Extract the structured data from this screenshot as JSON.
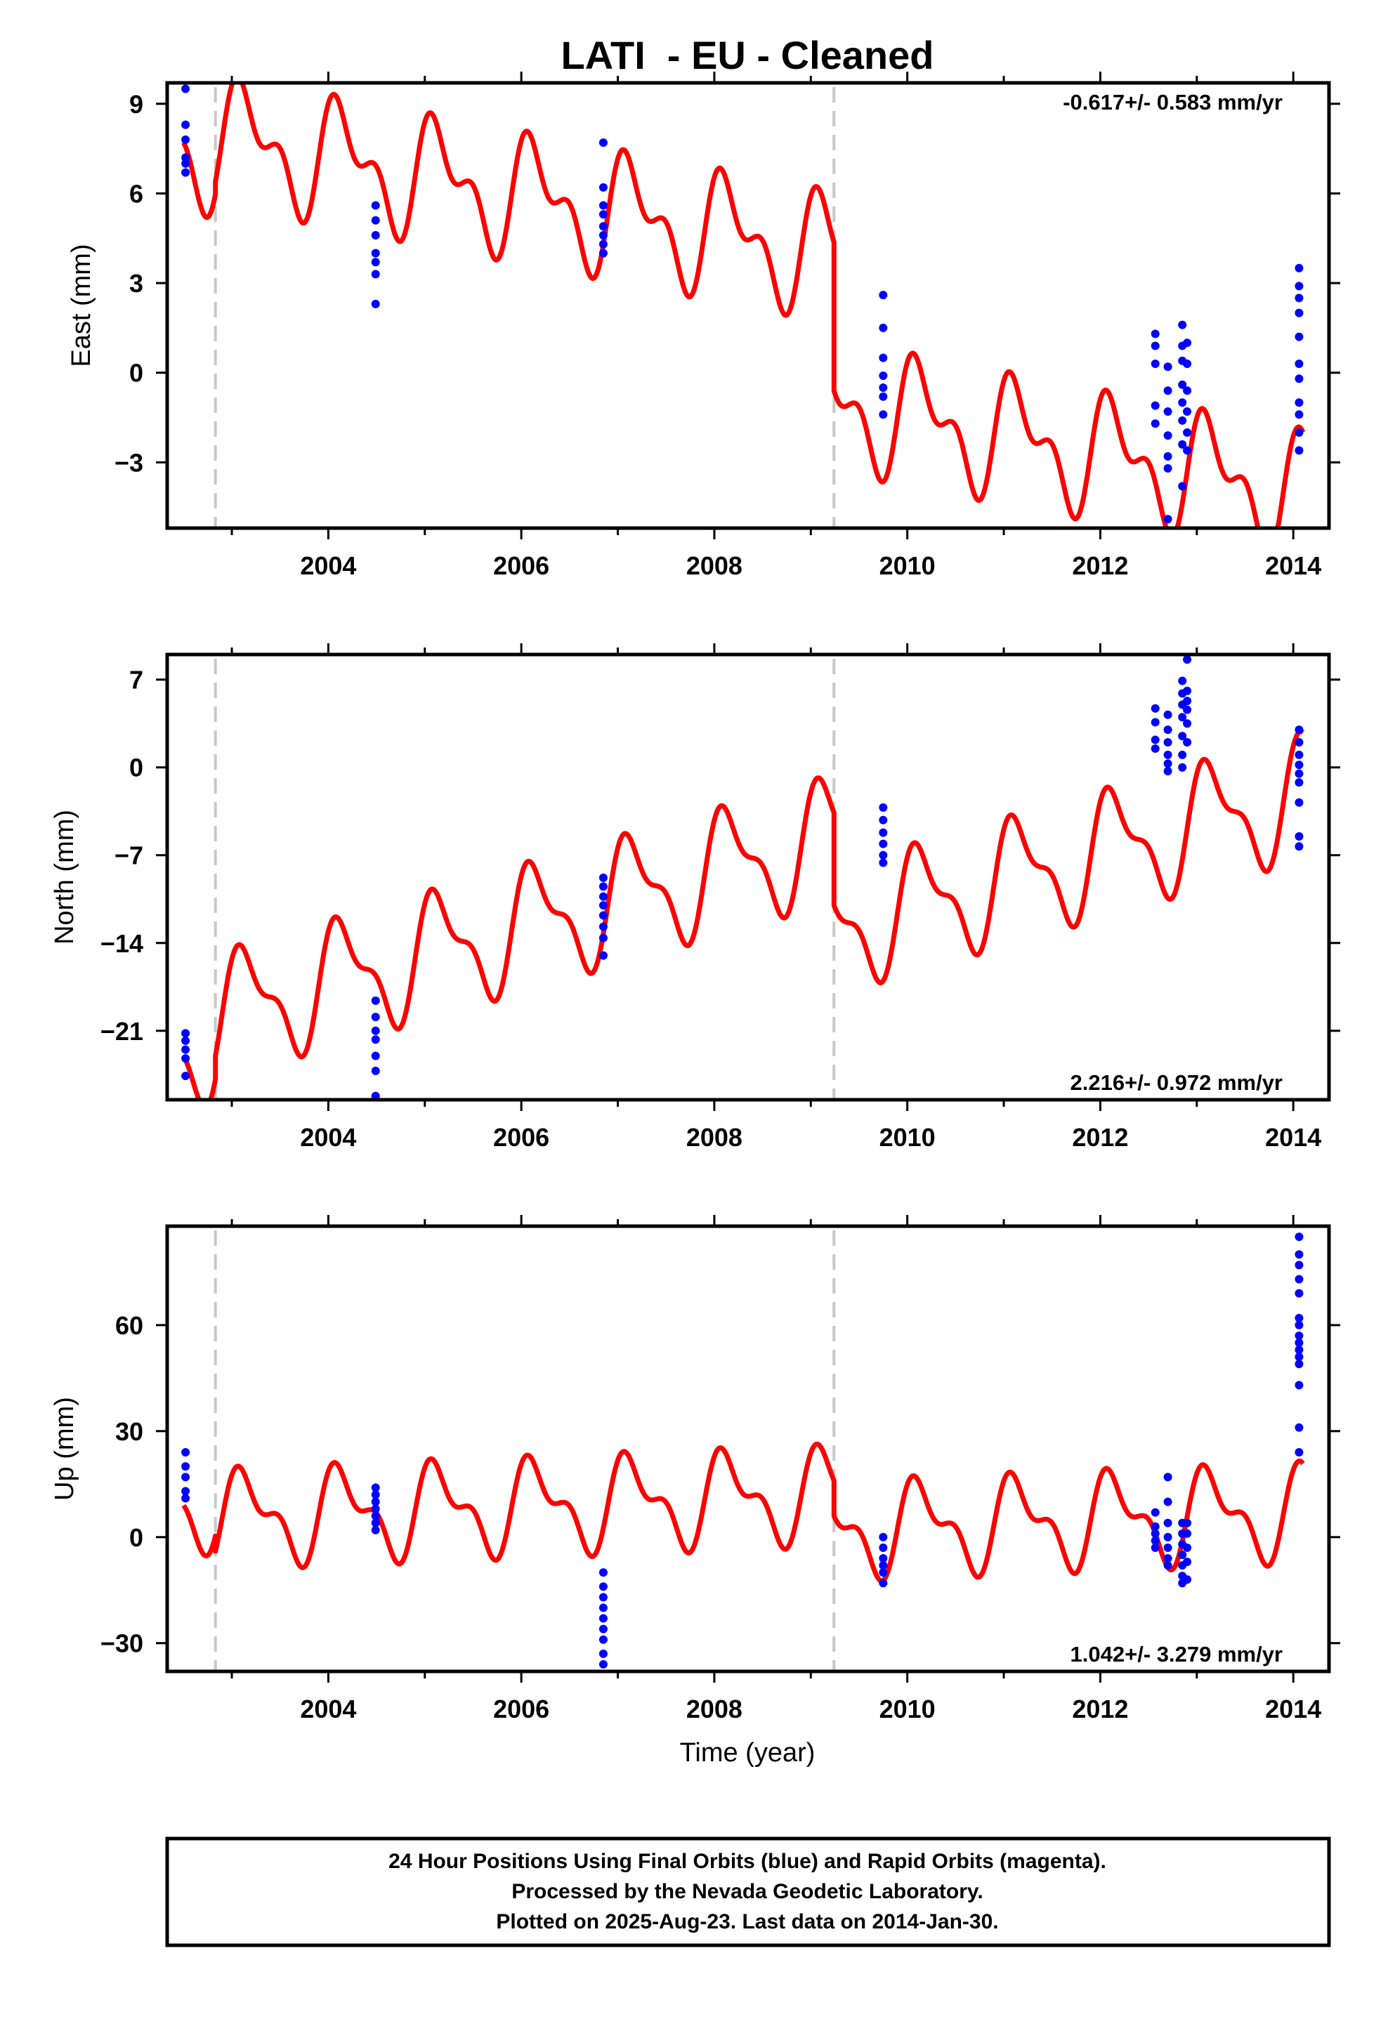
{
  "figure": {
    "title": "LATI  - EU - Cleaned",
    "x_axis_label": "Time (year)",
    "footer": [
      "24 Hour Positions Using Final Orbits (blue) and Rapid Orbits (magenta).",
      "Processed by the Nevada Geodetic Laboratory.",
      "Plotted on 2025-Aug-23. Last data on 2014-Jan-30."
    ],
    "colors": {
      "final_orbit_points": "#0000ff",
      "model_fit": "#ff0000",
      "equipment_change_lines": "#c8c8c8",
      "frame": "#000000"
    }
  },
  "chart_data": [
    {
      "type": "scatter",
      "component": "east",
      "ylabel": "East (mm)",
      "rate_label": "-0.617+/- 0.583 mm/yr",
      "rate_position": "top-right",
      "xlim": [
        2002.33,
        2014.37
      ],
      "ylim": [
        -5.2,
        9.7
      ],
      "xticks": [
        2004,
        2006,
        2008,
        2010,
        2012,
        2014
      ],
      "yticks": [
        9,
        6,
        3,
        0,
        -3
      ],
      "ytick_labels": [
        "9",
        "6",
        "3",
        "0",
        "−3"
      ],
      "grid": false,
      "step_epochs": [
        2002.83,
        2009.24
      ],
      "model": {
        "description_free": true,
        "start": 2002.5,
        "end": 2014.1,
        "segments": [
          {
            "from": 2002.5,
            "to": 2002.83,
            "value_at_start": 7.7
          },
          {
            "from": 2002.83,
            "to": 2009.24,
            "value_at_start": 6.4
          },
          {
            "from": 2009.24,
            "to": 2014.1,
            "value_at_start": -0.6
          }
        ],
        "rate": -0.617,
        "annual_amp": 1.6,
        "semiannual_amp": 1.0
      },
      "points": [
        {
          "x": 2002.52,
          "y": 9.5
        },
        {
          "x": 2002.52,
          "y": 8.3
        },
        {
          "x": 2002.52,
          "y": 7.8
        },
        {
          "x": 2002.52,
          "y": 7.2
        },
        {
          "x": 2002.52,
          "y": 7.0
        },
        {
          "x": 2002.52,
          "y": 6.7
        },
        {
          "x": 2004.49,
          "y": 5.6
        },
        {
          "x": 2004.49,
          "y": 5.1
        },
        {
          "x": 2004.49,
          "y": 4.6
        },
        {
          "x": 2004.49,
          "y": 4.0
        },
        {
          "x": 2004.49,
          "y": 3.7
        },
        {
          "x": 2004.49,
          "y": 3.3
        },
        {
          "x": 2004.49,
          "y": 2.3
        },
        {
          "x": 2006.85,
          "y": 7.7
        },
        {
          "x": 2006.85,
          "y": 6.2
        },
        {
          "x": 2006.85,
          "y": 5.6
        },
        {
          "x": 2006.85,
          "y": 5.3
        },
        {
          "x": 2006.85,
          "y": 4.9
        },
        {
          "x": 2006.85,
          "y": 4.6
        },
        {
          "x": 2006.85,
          "y": 4.3
        },
        {
          "x": 2006.85,
          "y": 4.0
        },
        {
          "x": 2009.75,
          "y": 2.6
        },
        {
          "x": 2009.75,
          "y": 1.5
        },
        {
          "x": 2009.75,
          "y": 0.5
        },
        {
          "x": 2009.75,
          "y": -0.1
        },
        {
          "x": 2009.75,
          "y": -0.5
        },
        {
          "x": 2009.75,
          "y": -0.8
        },
        {
          "x": 2009.75,
          "y": -1.4
        },
        {
          "x": 2012.57,
          "y": 1.3
        },
        {
          "x": 2012.57,
          "y": 0.9
        },
        {
          "x": 2012.57,
          "y": 0.3
        },
        {
          "x": 2012.57,
          "y": -1.1
        },
        {
          "x": 2012.57,
          "y": -1.7
        },
        {
          "x": 2012.7,
          "y": 0.2
        },
        {
          "x": 2012.7,
          "y": -0.6
        },
        {
          "x": 2012.7,
          "y": -1.3
        },
        {
          "x": 2012.7,
          "y": -2.1
        },
        {
          "x": 2012.7,
          "y": -2.8
        },
        {
          "x": 2012.7,
          "y": -3.2
        },
        {
          "x": 2012.7,
          "y": -4.9
        },
        {
          "x": 2012.85,
          "y": 1.6
        },
        {
          "x": 2012.85,
          "y": 0.9
        },
        {
          "x": 2012.85,
          "y": 0.4
        },
        {
          "x": 2012.85,
          "y": -0.4
        },
        {
          "x": 2012.85,
          "y": -1.0
        },
        {
          "x": 2012.85,
          "y": -1.6
        },
        {
          "x": 2012.85,
          "y": -2.4
        },
        {
          "x": 2012.85,
          "y": -3.8
        },
        {
          "x": 2012.9,
          "y": 1.0
        },
        {
          "x": 2012.9,
          "y": 0.3
        },
        {
          "x": 2012.9,
          "y": -0.6
        },
        {
          "x": 2012.9,
          "y": -1.3
        },
        {
          "x": 2012.9,
          "y": -2.0
        },
        {
          "x": 2012.9,
          "y": -2.6
        },
        {
          "x": 2014.06,
          "y": 3.5
        },
        {
          "x": 2014.06,
          "y": 2.9
        },
        {
          "x": 2014.06,
          "y": 2.5
        },
        {
          "x": 2014.06,
          "y": 2.0
        },
        {
          "x": 2014.06,
          "y": 1.2
        },
        {
          "x": 2014.06,
          "y": 0.3
        },
        {
          "x": 2014.06,
          "y": -0.2
        },
        {
          "x": 2014.06,
          "y": -1.0
        },
        {
          "x": 2014.06,
          "y": -1.4
        },
        {
          "x": 2014.06,
          "y": -2.0
        },
        {
          "x": 2014.06,
          "y": -2.6
        }
      ]
    },
    {
      "type": "scatter",
      "component": "north",
      "ylabel": "North (mm)",
      "rate_label": "2.216+/- 0.972 mm/yr",
      "rate_position": "bottom-right",
      "xlim": [
        2002.33,
        2014.37
      ],
      "ylim": [
        -26.5,
        9.0
      ],
      "xticks": [
        2004,
        2006,
        2008,
        2010,
        2012,
        2014
      ],
      "yticks": [
        7,
        0,
        -7,
        -14,
        -21
      ],
      "ytick_labels": [
        "7",
        "0",
        "−7",
        "−14",
        "−21"
      ],
      "grid": false,
      "step_epochs": [
        2002.83,
        2009.24
      ],
      "model": {
        "start": 2002.5,
        "end": 2014.1,
        "segments": [
          {
            "from": 2002.5,
            "to": 2002.83,
            "value_at_start": -23.0
          },
          {
            "from": 2002.83,
            "to": 2009.24,
            "value_at_start": -23.0
          },
          {
            "from": 2009.24,
            "to": 2014.1,
            "value_at_start": -11.0
          }
        ],
        "rate": 2.216,
        "annual_amp": 4.2,
        "semiannual_amp": 1.8
      },
      "points": [
        {
          "x": 2002.52,
          "y": -21.2
        },
        {
          "x": 2002.52,
          "y": -21.8
        },
        {
          "x": 2002.52,
          "y": -22.5
        },
        {
          "x": 2002.52,
          "y": -23.2
        },
        {
          "x": 2002.52,
          "y": -24.6
        },
        {
          "x": 2004.49,
          "y": -18.6
        },
        {
          "x": 2004.49,
          "y": -19.9
        },
        {
          "x": 2004.49,
          "y": -21.0
        },
        {
          "x": 2004.49,
          "y": -21.7
        },
        {
          "x": 2004.49,
          "y": -23.0
        },
        {
          "x": 2004.49,
          "y": -24.2
        },
        {
          "x": 2004.49,
          "y": -26.2
        },
        {
          "x": 2006.85,
          "y": -8.8
        },
        {
          "x": 2006.85,
          "y": -9.5
        },
        {
          "x": 2006.85,
          "y": -10.3
        },
        {
          "x": 2006.85,
          "y": -11.0
        },
        {
          "x": 2006.85,
          "y": -11.8
        },
        {
          "x": 2006.85,
          "y": -12.7
        },
        {
          "x": 2006.85,
          "y": -13.6
        },
        {
          "x": 2006.85,
          "y": -15.0
        },
        {
          "x": 2009.75,
          "y": -3.2
        },
        {
          "x": 2009.75,
          "y": -4.2
        },
        {
          "x": 2009.75,
          "y": -5.2
        },
        {
          "x": 2009.75,
          "y": -6.1
        },
        {
          "x": 2009.75,
          "y": -7.0
        },
        {
          "x": 2009.75,
          "y": -7.6
        },
        {
          "x": 2012.57,
          "y": 4.7
        },
        {
          "x": 2012.57,
          "y": 3.6
        },
        {
          "x": 2012.57,
          "y": 2.2
        },
        {
          "x": 2012.57,
          "y": 1.5
        },
        {
          "x": 2012.7,
          "y": 4.2
        },
        {
          "x": 2012.7,
          "y": 3.0
        },
        {
          "x": 2012.7,
          "y": 2.0
        },
        {
          "x": 2012.7,
          "y": 1.0
        },
        {
          "x": 2012.7,
          "y": 0.3
        },
        {
          "x": 2012.7,
          "y": -0.3
        },
        {
          "x": 2012.85,
          "y": 6.9
        },
        {
          "x": 2012.85,
          "y": 5.9
        },
        {
          "x": 2012.85,
          "y": 5.0
        },
        {
          "x": 2012.85,
          "y": 4.0
        },
        {
          "x": 2012.85,
          "y": 2.5
        },
        {
          "x": 2012.85,
          "y": 1.0
        },
        {
          "x": 2012.85,
          "y": 0.0
        },
        {
          "x": 2012.9,
          "y": 8.6
        },
        {
          "x": 2012.9,
          "y": 6.1
        },
        {
          "x": 2012.9,
          "y": 5.3
        },
        {
          "x": 2012.9,
          "y": 4.6
        },
        {
          "x": 2012.9,
          "y": 3.5
        },
        {
          "x": 2012.9,
          "y": 2.0
        },
        {
          "x": 2014.06,
          "y": 3.0
        },
        {
          "x": 2014.06,
          "y": 2.0
        },
        {
          "x": 2014.06,
          "y": 1.0
        },
        {
          "x": 2014.06,
          "y": 0.2
        },
        {
          "x": 2014.06,
          "y": -0.5
        },
        {
          "x": 2014.06,
          "y": -1.2
        },
        {
          "x": 2014.06,
          "y": -2.8
        },
        {
          "x": 2014.06,
          "y": -5.5
        },
        {
          "x": 2014.06,
          "y": -6.3
        }
      ]
    },
    {
      "type": "scatter",
      "component": "up",
      "ylabel": "Up (mm)",
      "rate_label": "1.042+/- 3.279 mm/yr",
      "rate_position": "bottom-right",
      "xlim": [
        2002.33,
        2014.37
      ],
      "ylim": [
        -38.0,
        88.0
      ],
      "xticks": [
        2004,
        2006,
        2008,
        2010,
        2012,
        2014
      ],
      "yticks": [
        60,
        30,
        0,
        -30
      ],
      "ytick_labels": [
        "60",
        "30",
        "0",
        "−30"
      ],
      "grid": false,
      "step_epochs": [
        2002.83,
        2009.24
      ],
      "model": {
        "start": 2002.5,
        "end": 2014.1,
        "segments": [
          {
            "from": 2002.5,
            "to": 2002.83,
            "value_at_start": 9.0
          },
          {
            "from": 2002.83,
            "to": 2009.24,
            "value_at_start": -4.0
          },
          {
            "from": 2009.24,
            "to": 2014.1,
            "value_at_start": 6.0
          }
        ],
        "rate": 1.042,
        "annual_amp": 11.0,
        "semiannual_amp": 6.0
      },
      "points": [
        {
          "x": 2002.52,
          "y": 24.0
        },
        {
          "x": 2002.52,
          "y": 20.0
        },
        {
          "x": 2002.52,
          "y": 17.0
        },
        {
          "x": 2002.52,
          "y": 13.0
        },
        {
          "x": 2002.52,
          "y": 11.0
        },
        {
          "x": 2004.49,
          "y": 14.0
        },
        {
          "x": 2004.49,
          "y": 12.0
        },
        {
          "x": 2004.49,
          "y": 10.0
        },
        {
          "x": 2004.49,
          "y": 8.0
        },
        {
          "x": 2004.49,
          "y": 6.0
        },
        {
          "x": 2004.49,
          "y": 4.0
        },
        {
          "x": 2004.49,
          "y": 2.0
        },
        {
          "x": 2006.85,
          "y": -10.0
        },
        {
          "x": 2006.85,
          "y": -14.0
        },
        {
          "x": 2006.85,
          "y": -17.0
        },
        {
          "x": 2006.85,
          "y": -20.0
        },
        {
          "x": 2006.85,
          "y": -23.0
        },
        {
          "x": 2006.85,
          "y": -26.0
        },
        {
          "x": 2006.85,
          "y": -29.0
        },
        {
          "x": 2006.85,
          "y": -33.0
        },
        {
          "x": 2006.85,
          "y": -36.0
        },
        {
          "x": 2009.75,
          "y": 0.0
        },
        {
          "x": 2009.75,
          "y": -3.0
        },
        {
          "x": 2009.75,
          "y": -6.0
        },
        {
          "x": 2009.75,
          "y": -8.0
        },
        {
          "x": 2009.75,
          "y": -10.0
        },
        {
          "x": 2009.75,
          "y": -13.0
        },
        {
          "x": 2012.57,
          "y": 7.0
        },
        {
          "x": 2012.57,
          "y": 3.0
        },
        {
          "x": 2012.57,
          "y": 1.0
        },
        {
          "x": 2012.57,
          "y": -1.0
        },
        {
          "x": 2012.57,
          "y": -3.0
        },
        {
          "x": 2012.7,
          "y": 17.0
        },
        {
          "x": 2012.7,
          "y": 10.0
        },
        {
          "x": 2012.7,
          "y": 4.0
        },
        {
          "x": 2012.7,
          "y": 0.0
        },
        {
          "x": 2012.7,
          "y": -3.0
        },
        {
          "x": 2012.7,
          "y": -6.0
        },
        {
          "x": 2012.7,
          "y": -8.0
        },
        {
          "x": 2012.85,
          "y": 4.0
        },
        {
          "x": 2012.85,
          "y": 1.0
        },
        {
          "x": 2012.85,
          "y": -2.0
        },
        {
          "x": 2012.85,
          "y": -5.0
        },
        {
          "x": 2012.85,
          "y": -8.0
        },
        {
          "x": 2012.85,
          "y": -11.0
        },
        {
          "x": 2012.85,
          "y": -13.0
        },
        {
          "x": 2012.9,
          "y": 4.0
        },
        {
          "x": 2012.9,
          "y": 1.0
        },
        {
          "x": 2012.9,
          "y": -3.0
        },
        {
          "x": 2012.9,
          "y": -7.0
        },
        {
          "x": 2012.9,
          "y": -12.0
        },
        {
          "x": 2014.06,
          "y": 85.0
        },
        {
          "x": 2014.06,
          "y": 80.0
        },
        {
          "x": 2014.06,
          "y": 77.0
        },
        {
          "x": 2014.06,
          "y": 73.0
        },
        {
          "x": 2014.06,
          "y": 69.0
        },
        {
          "x": 2014.06,
          "y": 62.0
        },
        {
          "x": 2014.06,
          "y": 60.0
        },
        {
          "x": 2014.06,
          "y": 57.0
        },
        {
          "x": 2014.06,
          "y": 55.0
        },
        {
          "x": 2014.06,
          "y": 53.0
        },
        {
          "x": 2014.06,
          "y": 51.0
        },
        {
          "x": 2014.06,
          "y": 49.0
        },
        {
          "x": 2014.06,
          "y": 43.0
        },
        {
          "x": 2014.06,
          "y": 31.0
        },
        {
          "x": 2014.06,
          "y": 24.0
        }
      ]
    }
  ]
}
